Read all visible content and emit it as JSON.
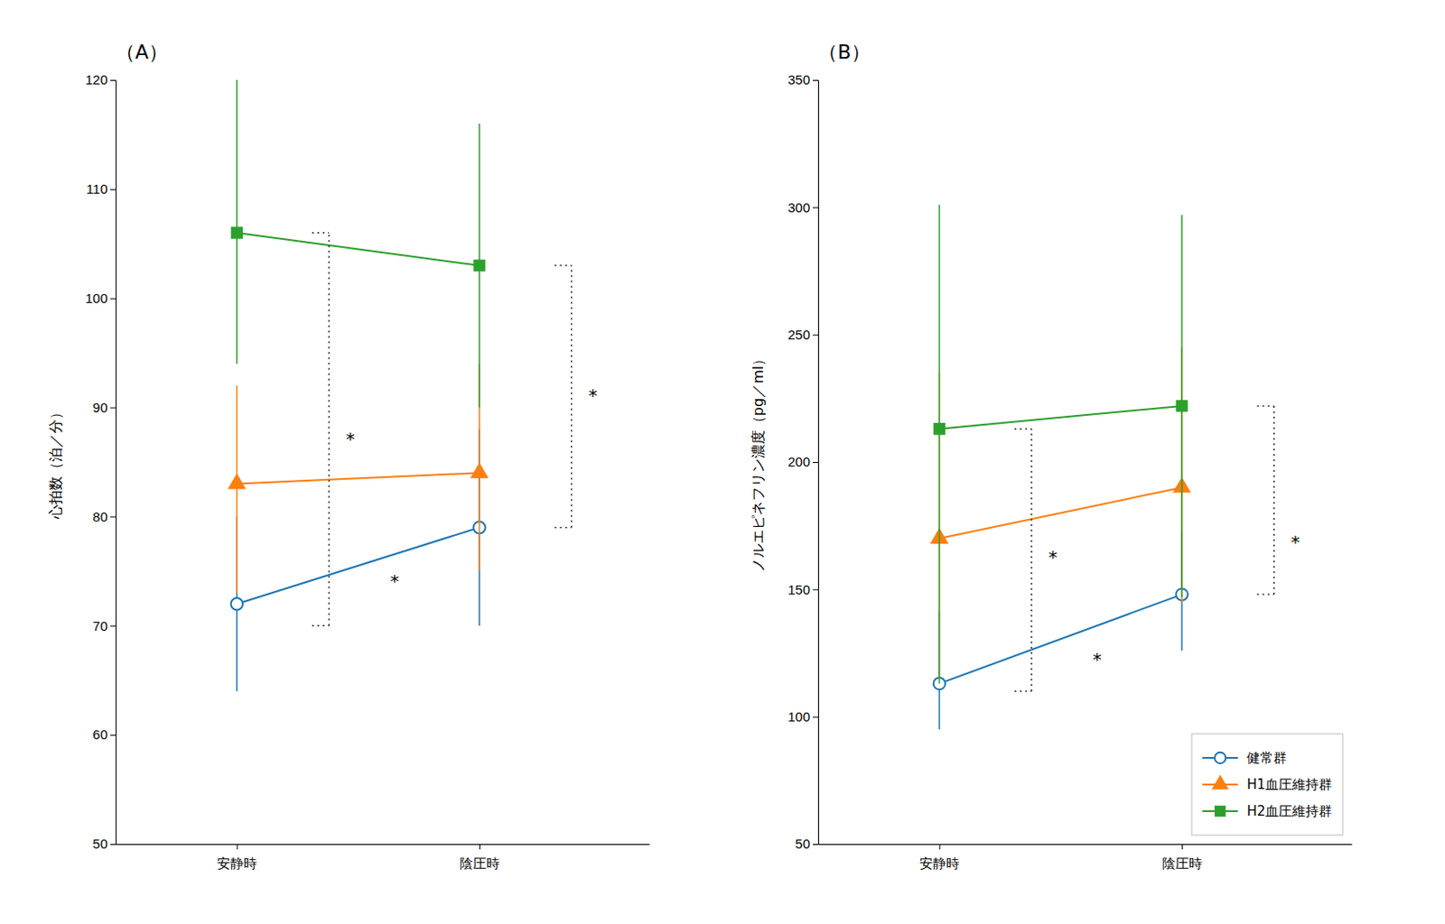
{
  "chart_data": [
    {
      "type": "line",
      "title": "（A）",
      "y_label": "心拍数（泊／分）",
      "categories": [
        "安静時",
        "陰圧時"
      ],
      "ylim": [
        50,
        120
      ],
      "yticks": [
        50,
        60,
        70,
        80,
        90,
        100,
        110,
        120
      ],
      "grid": false,
      "series": [
        {
          "name": "健常群",
          "marker": "circle-open",
          "values": [
            72,
            79
          ],
          "error_low": [
            8,
            9
          ],
          "error_high": [
            8,
            9
          ]
        },
        {
          "name": "H1血圧維持群",
          "marker": "triangle",
          "values": [
            83,
            84
          ],
          "error_low": [
            10,
            9
          ],
          "error_high": [
            9,
            10
          ]
        },
        {
          "name": "H2血圧維持群",
          "marker": "square",
          "values": [
            106,
            103
          ],
          "error_low": [
            12,
            13
          ],
          "error_high": [
            14,
            13
          ]
        }
      ],
      "annotations": [
        {
          "text": "*",
          "category": 0,
          "y": 87,
          "bracket": [
            70,
            106
          ]
        },
        {
          "text": "*",
          "category": 1,
          "y": 91,
          "bracket": [
            79,
            103
          ]
        },
        {
          "text": "*",
          "between": [
            0,
            1
          ],
          "y": 74
        }
      ]
    },
    {
      "type": "line",
      "title": "（B）",
      "y_label": "ノルエピネフリン濃度（pg／ml）",
      "categories": [
        "安静時",
        "陰圧時"
      ],
      "ylim": [
        50,
        350
      ],
      "yticks": [
        50,
        100,
        150,
        200,
        250,
        300,
        350
      ],
      "grid": false,
      "legend": "lower right",
      "series": [
        {
          "name": "健常群",
          "marker": "circle-open",
          "values": [
            113,
            148
          ],
          "error_low": [
            18,
            22
          ],
          "error_high": [
            28,
            25
          ]
        },
        {
          "name": "H1血圧維持群",
          "marker": "triangle",
          "values": [
            170,
            190
          ],
          "error_low": [
            55,
            45
          ],
          "error_high": [
            65,
            55
          ]
        },
        {
          "name": "H2血圧維持群",
          "marker": "square",
          "values": [
            213,
            222
          ],
          "error_low": [
            100,
            75
          ],
          "error_high": [
            88,
            75
          ]
        }
      ],
      "annotations": [
        {
          "text": "*",
          "category": 0,
          "y": 162,
          "bracket": [
            110,
            213
          ]
        },
        {
          "text": "*",
          "category": 1,
          "y": 168,
          "bracket": [
            148,
            222
          ]
        },
        {
          "text": "*",
          "between": [
            0,
            1
          ],
          "y": 122
        }
      ]
    }
  ]
}
